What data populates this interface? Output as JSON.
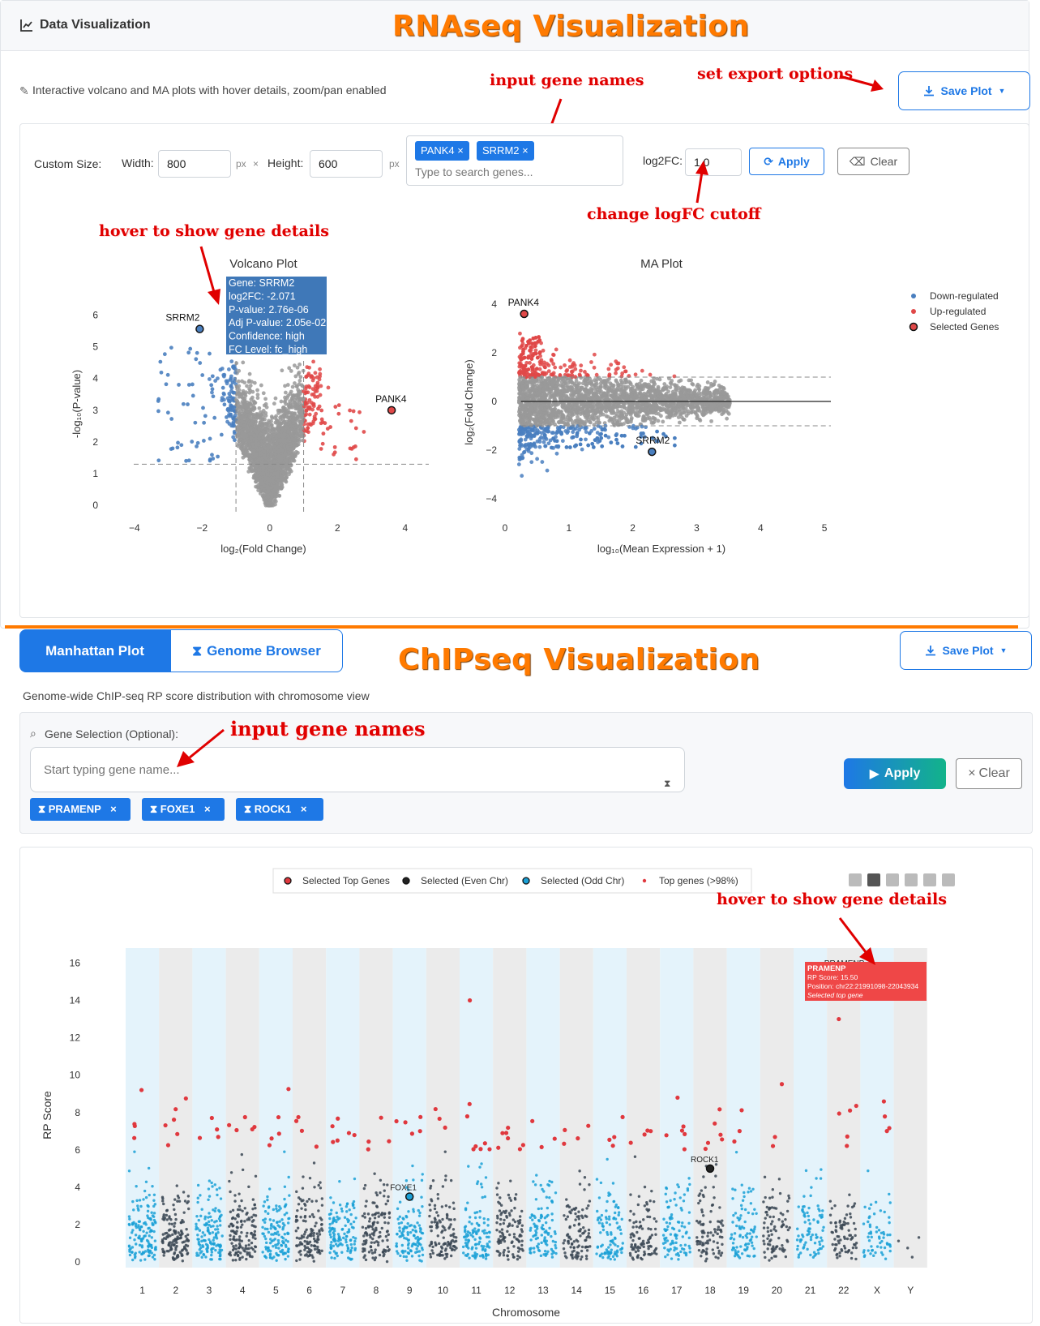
{
  "top": {
    "header_title": "Data Visualization",
    "banner": "RNAseq Visualization",
    "subtitle": "Interactive volcano and MA plots with hover details, zoom/pan enabled",
    "save_plot": "Save Plot",
    "custom_size_label": "Custom Size:",
    "width_label": "Width:",
    "width_value": "800",
    "px_unit": "px",
    "times": "×",
    "height_label": "Height:",
    "height_value": "600",
    "gene_chips": [
      "PANK4 ×",
      "SRRM2 ×"
    ],
    "gene_placeholder": "Type to search genes...",
    "log2fc_label": "log2FC:",
    "log2fc_value": "1.0",
    "apply": "Apply",
    "clear": "Clear",
    "annotations": {
      "export": "set export options",
      "genes": "input gene names",
      "logfc": "change logFC cutoff",
      "hover": "hover to show gene details"
    }
  },
  "bottom": {
    "banner": "ChIPseq Visualization",
    "tab_manhattan": "Manhattan Plot",
    "tab_genome": "Genome Browser",
    "save_plot": "Save Plot",
    "subtitle": "Genome-wide ChIP-seq RP score distribution with chromosome view",
    "gene_selection_label": "Gene Selection (Optional):",
    "gene_placeholder": "Start typing gene name...",
    "chips": [
      "PRAMENP",
      "FOXE1",
      "ROCK1"
    ],
    "apply": "Apply",
    "clear": "Clear",
    "annotations": {
      "genes": "input gene names",
      "hover": "hover to show gene details"
    }
  },
  "colors": {
    "accent": "#1e78e6",
    "down": "#4a7fbf",
    "up": "#e04848",
    "ns": "#999999",
    "banner": "#ff7a00",
    "annotation": "#e00000"
  },
  "chart_data": [
    {
      "type": "scatter",
      "title": "Volcano Plot",
      "xlabel": "log₂(Fold Change)",
      "ylabel": "-log₁₀(P-value)",
      "xlim": [
        -4.5,
        4.7
      ],
      "ylim": [
        -0.2,
        6.6
      ],
      "xticks": [
        -4,
        -2,
        0,
        2,
        4
      ],
      "yticks": [
        0,
        1,
        2,
        3,
        4,
        5,
        6
      ],
      "thresholds": {
        "x": [
          -1,
          1
        ],
        "y": 1.3
      },
      "labeled_points": [
        {
          "gene": "SRRM2",
          "x": -2.071,
          "y": 5.56
        },
        {
          "gene": "PANK4",
          "x": 3.6,
          "y": 3.0
        }
      ],
      "tooltip": [
        "Gene: SRRM2",
        "log2FC: -2.071",
        "P-value: 2.76e-06",
        "Adj P-value: 2.05e-02",
        "Confidence: high",
        "FC Level: fc_high"
      ]
    },
    {
      "type": "scatter",
      "title": "MA Plot",
      "xlabel": "log₁₀(Mean Expression + 1)",
      "ylabel": "log₂(Fold Change)",
      "xlim": [
        0,
        5.1
      ],
      "ylim": [
        -4.4,
        4.6
      ],
      "xticks": [
        0,
        1,
        2,
        3,
        4,
        5
      ],
      "yticks": [
        -4,
        -2,
        0,
        2,
        4
      ],
      "thresholds": {
        "y": [
          -1,
          1
        ]
      },
      "labeled_points": [
        {
          "gene": "PANK4",
          "x": 0.3,
          "y": 3.6
        },
        {
          "gene": "SRRM2",
          "x": 2.3,
          "y": -2.07
        }
      ],
      "legend": [
        "Down-regulated",
        "Up-regulated",
        "Selected Genes"
      ]
    },
    {
      "type": "scatter",
      "xlabel": "Chromosome",
      "ylabel": "RP Score",
      "ylim": [
        -0.3,
        16.8
      ],
      "yticks": [
        0,
        2,
        4,
        6,
        8,
        10,
        12,
        14,
        16
      ],
      "categories": [
        "1",
        "2",
        "3",
        "4",
        "5",
        "6",
        "7",
        "8",
        "9",
        "10",
        "11",
        "12",
        "13",
        "14",
        "15",
        "16",
        "17",
        "18",
        "19",
        "20",
        "21",
        "22",
        "X",
        "Y"
      ],
      "legend": [
        "Selected Top Genes",
        "Selected (Even Chr)",
        "Selected (Odd Chr)",
        "Top genes (>98%)"
      ],
      "labeled_points": [
        {
          "gene": "PRAMENP",
          "chr": "22",
          "y": 15.5
        },
        {
          "gene": "ROCK1",
          "chr": "18",
          "y": 5.0
        },
        {
          "gene": "FOXE1",
          "chr": "9",
          "y": 3.5
        }
      ],
      "tooltip": [
        "PRAMENP",
        "RP Score: 15.50",
        "Position: chr22:21991098-22043934",
        "Selected top gene"
      ]
    }
  ]
}
